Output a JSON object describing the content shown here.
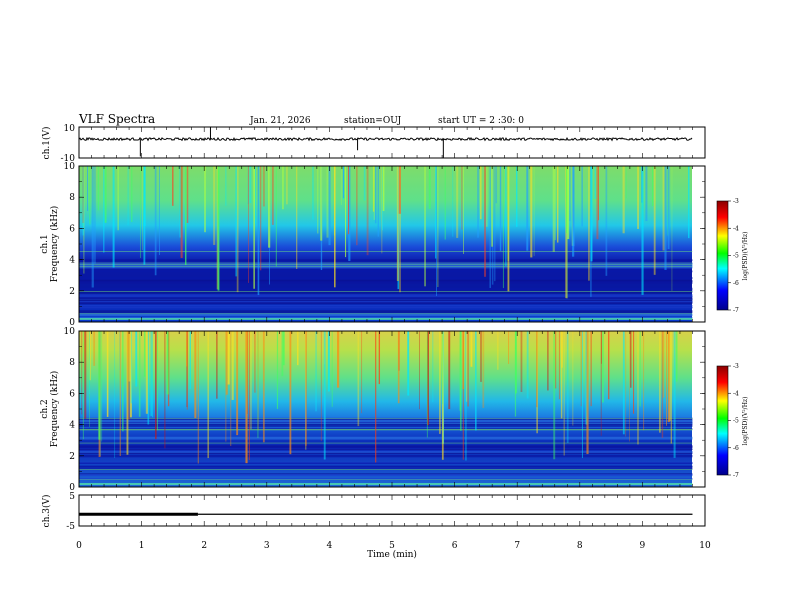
{
  "header": {
    "title": "VLF Spectra",
    "date": "Jan. 21, 2026",
    "station": "station=OUJ",
    "start": "start UT =  2 :30: 0"
  },
  "chart_data": [
    {
      "panel": "ch1-waveform",
      "type": "line",
      "ylabel": "ch.1(V)",
      "ylim": [
        -10,
        10
      ],
      "ytick_labels": [
        "10",
        "-10"
      ],
      "xlim": [
        0,
        10
      ]
    },
    {
      "panel": "ch1-spectrogram",
      "type": "heatmap",
      "ylabel": "ch.1 Frequency (kHz)",
      "ylim": [
        0,
        10
      ],
      "ytick_labels": [
        "0",
        "2",
        "4",
        "6",
        "8",
        "10"
      ],
      "xlim": [
        0,
        10
      ],
      "data_end_min": 9.8,
      "colorbar": {
        "label": "log(PSD)(V²/Hz)",
        "range": [
          -7,
          -3
        ],
        "tick_labels": [
          "-3",
          "-4",
          "-5",
          "-6",
          "-7"
        ]
      }
    },
    {
      "panel": "ch2-spectrogram",
      "type": "heatmap",
      "ylabel": "ch.2 Frequency (kHz)",
      "ylim": [
        0,
        10
      ],
      "ytick_labels": [
        "0",
        "2",
        "4",
        "6",
        "8",
        "10"
      ],
      "xlim": [
        0,
        10
      ],
      "data_end_min": 9.8,
      "colorbar": {
        "label": "log(PSD)(V²/Hz)",
        "range": [
          -7,
          -3
        ],
        "tick_labels": [
          "-3",
          "-4",
          "-5",
          "-6",
          "-7"
        ]
      }
    },
    {
      "panel": "ch3-waveform",
      "type": "line",
      "ylabel": "ch.3(V)",
      "ylim": [
        -5,
        5
      ],
      "ytick_labels": [
        "5",
        "-5"
      ],
      "xlim": [
        0,
        10
      ],
      "segments": [
        {
          "x": [
            0,
            1.9
          ],
          "y": [
            -1.2,
            -1.2
          ],
          "weight": "thick"
        },
        {
          "x": [
            1.9,
            9.8
          ],
          "y": [
            -1.2,
            -1.2
          ],
          "weight": "thin"
        }
      ]
    }
  ],
  "x_axis": {
    "label": "Time (min)",
    "tick_labels": [
      "0",
      "1",
      "2",
      "3",
      "4",
      "5",
      "6",
      "7",
      "8",
      "9",
      "10"
    ]
  },
  "colors": {
    "axis": "#000000",
    "line": "#000000",
    "colormap": [
      "#00008b",
      "#0000ff",
      "#00ffff",
      "#00ff00",
      "#ffff00",
      "#ff0000",
      "#8b0000"
    ]
  }
}
